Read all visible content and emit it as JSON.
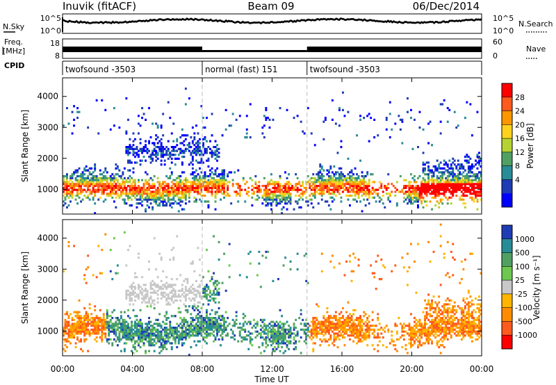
{
  "header": {
    "station": "Inuvik (fitACF)",
    "beam": "Beam 09",
    "date": "06/Dec/2014"
  },
  "noise_panel": {
    "left_label": "N.Sky",
    "left_ticks": [
      "10^5",
      "10^0"
    ],
    "right_label": "N.Search",
    "right_ticks": [
      "10^5",
      "10^0"
    ]
  },
  "freq_panel": {
    "left_label_1": "Freq.",
    "left_label_2": "[MHz]",
    "left_ticks": [
      "18",
      "8"
    ],
    "right_label": "Nave",
    "right_ticks": [
      "60",
      "0"
    ]
  },
  "cpid_panel": {
    "label": "CPID",
    "segments": [
      {
        "label": "twofsound -3503",
        "start_h": 0,
        "end_h": 8
      },
      {
        "label": "normal (fast) 151",
        "start_h": 8,
        "end_h": 14
      },
      {
        "label": "twofsound -3503",
        "start_h": 14,
        "end_h": 24
      }
    ]
  },
  "chart_data": [
    {
      "type": "heatmap",
      "name": "power",
      "ylabel": "Slant Range [km]",
      "ylim": [
        200,
        4600
      ],
      "yticks": [
        1000,
        2000,
        3000,
        4000
      ],
      "xlim": [
        0,
        24
      ],
      "colorbar": {
        "label": "Power [dB]",
        "ticks": [
          "28",
          "24",
          "20",
          "16",
          "12",
          "8",
          "4"
        ],
        "colors": [
          "#ff0000",
          "#ff5a1e",
          "#ff9600",
          "#ffd21e",
          "#b4d232",
          "#50a064",
          "#288c96",
          "#1e3cb4",
          "#0000ff"
        ]
      }
    },
    {
      "type": "heatmap",
      "name": "velocity",
      "ylabel": "Slant Range [km]",
      "ylim": [
        200,
        4600
      ],
      "yticks": [
        1000,
        2000,
        3000,
        4000
      ],
      "xlim": [
        0,
        24
      ],
      "xticks": [
        "00:00",
        "04:00",
        "08:00",
        "12:00",
        "16:00",
        "20:00",
        "00:00"
      ],
      "xlabel": "Time UT",
      "colorbar": {
        "label": "Velocity [m s⁻¹]",
        "ticks": [
          "1000",
          "500",
          "100",
          "25",
          "-25",
          "-100",
          "-500",
          "-1000"
        ],
        "colors": [
          "#1e3cb4",
          "#288c96",
          "#50a064",
          "#6ec850",
          "#c8c8c8",
          "#ffb400",
          "#ff8c00",
          "#ff5a1e",
          "#ff0000"
        ]
      }
    }
  ]
}
